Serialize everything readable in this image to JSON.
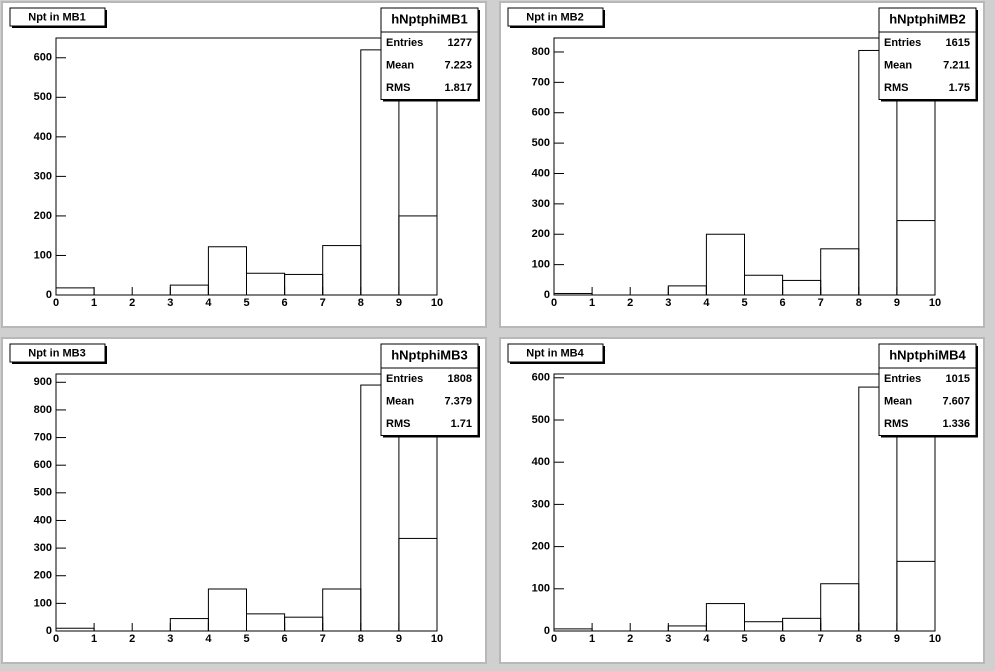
{
  "chart_data": [
    {
      "type": "histogram",
      "title": "Npt in MB1",
      "bins": [
        0,
        1,
        2,
        3,
        4,
        5,
        6,
        7,
        8,
        9,
        10
      ],
      "values": [
        18,
        0,
        0,
        25,
        122,
        55,
        52,
        125,
        620,
        200
      ],
      "xlim": [
        0,
        10
      ],
      "ylim": [
        0,
        650
      ],
      "xticks": [
        0,
        1,
        2,
        3,
        4,
        5,
        6,
        7,
        8,
        9,
        10
      ],
      "yticks": [
        0,
        100,
        200,
        300,
        400,
        500,
        600
      ],
      "stats": {
        "name": "hNptphiMB1",
        "rows": [
          {
            "label": "Entries",
            "value": 1277
          },
          {
            "label": "Mean",
            "value": 7.223
          },
          {
            "label": "RMS",
            "value": 1.817
          }
        ]
      }
    },
    {
      "type": "histogram",
      "title": "Npt in MB2",
      "bins": [
        0,
        1,
        2,
        3,
        4,
        5,
        6,
        7,
        8,
        9,
        10
      ],
      "values": [
        5,
        0,
        0,
        30,
        200,
        65,
        48,
        152,
        805,
        245
      ],
      "xlim": [
        0,
        10
      ],
      "ylim": [
        0,
        846
      ],
      "xticks": [
        0,
        1,
        2,
        3,
        4,
        5,
        6,
        7,
        8,
        9,
        10
      ],
      "yticks": [
        0,
        100,
        200,
        300,
        400,
        500,
        600,
        700,
        800
      ],
      "stats": {
        "name": "hNptphiMB2",
        "rows": [
          {
            "label": "Entries",
            "value": 1615
          },
          {
            "label": "Mean",
            "value": 7.211
          },
          {
            "label": "RMS",
            "value": 1.75
          }
        ]
      }
    },
    {
      "type": "histogram",
      "title": "Npt in MB3",
      "bins": [
        0,
        1,
        2,
        3,
        4,
        5,
        6,
        7,
        8,
        9,
        10
      ],
      "values": [
        10,
        0,
        0,
        45,
        152,
        62,
        50,
        152,
        890,
        335
      ],
      "xlim": [
        0,
        10
      ],
      "ylim": [
        0,
        930
      ],
      "xticks": [
        0,
        1,
        2,
        3,
        4,
        5,
        6,
        7,
        8,
        9,
        10
      ],
      "yticks": [
        0,
        100,
        200,
        300,
        400,
        500,
        600,
        700,
        800,
        900
      ],
      "stats": {
        "name": "hNptphiMB3",
        "rows": [
          {
            "label": "Entries",
            "value": 1808
          },
          {
            "label": "Mean",
            "value": 7.379
          },
          {
            "label": "RMS",
            "value": 1.71
          }
        ]
      }
    },
    {
      "type": "histogram",
      "title": "Npt in MB4",
      "bins": [
        0,
        1,
        2,
        3,
        4,
        5,
        6,
        7,
        8,
        9,
        10
      ],
      "values": [
        5,
        0,
        0,
        12,
        65,
        22,
        30,
        112,
        578,
        165
      ],
      "xlim": [
        0,
        10
      ],
      "ylim": [
        0,
        609
      ],
      "xticks": [
        0,
        1,
        2,
        3,
        4,
        5,
        6,
        7,
        8,
        9,
        10
      ],
      "yticks": [
        0,
        100,
        200,
        300,
        400,
        500,
        600
      ],
      "stats": {
        "name": "hNptphiMB4",
        "rows": [
          {
            "label": "Entries",
            "value": 1015
          },
          {
            "label": "Mean",
            "value": 7.607
          },
          {
            "label": "RMS",
            "value": 1.336
          }
        ]
      }
    }
  ]
}
